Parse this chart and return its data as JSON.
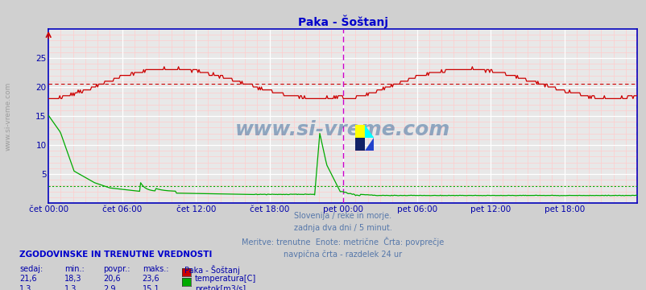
{
  "title": "Paka - Šoštanj",
  "bg_color": "#d0d0d0",
  "plot_bg_color": "#e8e8e8",
  "border_color": "#0000bb",
  "tick_color": "#0000aa",
  "title_color": "#0000cc",
  "text_color": "#5577aa",
  "watermark": "www.si-vreme.com",
  "watermark_color": "#336699",
  "footer_lines": [
    "Slovenija / reke in morje.",
    "zadnja dva dni / 5 minut.",
    "Meritve: trenutne  Enote: metrične  Črta: povprečje",
    "navpična črta - razdelek 24 ur"
  ],
  "legend_title": "ZGODOVINSKE IN TRENUTNE VREDNOSTI",
  "legend_cols": [
    "sedaj:",
    "min.:",
    "povpr.:",
    "maks.:",
    "Paka - Šoštanj"
  ],
  "legend_rows": [
    [
      "21,6",
      "18,3",
      "20,6",
      "23,6",
      "temperatura[C]",
      "#cc0000"
    ],
    [
      "1,3",
      "1,3",
      "2,9",
      "15,1",
      "pretok[m3/s]",
      "#00aa00"
    ]
  ],
  "xlim": [
    0,
    575
  ],
  "ylim": [
    0,
    30
  ],
  "yticks": [
    5,
    10,
    15,
    20,
    25
  ],
  "xtick_positions": [
    0,
    72,
    144,
    216,
    288,
    360,
    432,
    504,
    575
  ],
  "xtick_labels": [
    "čet 00:00",
    "čet 06:00",
    "čet 12:00",
    "čet 18:00",
    "pet 00:00",
    "pet 06:00",
    "pet 12:00",
    "pet 18:00",
    ""
  ],
  "vline_positions": [
    288
  ],
  "vline_color": "#cc00cc",
  "temp_avg": 20.6,
  "temp_avg_color": "#cc0000",
  "flow_avg": 2.9,
  "flow_avg_color": "#00aa00",
  "temp_color": "#cc0000",
  "flow_color": "#00aa00",
  "minor_grid_color": "#ffcccc",
  "major_grid_color": "#ffffff"
}
